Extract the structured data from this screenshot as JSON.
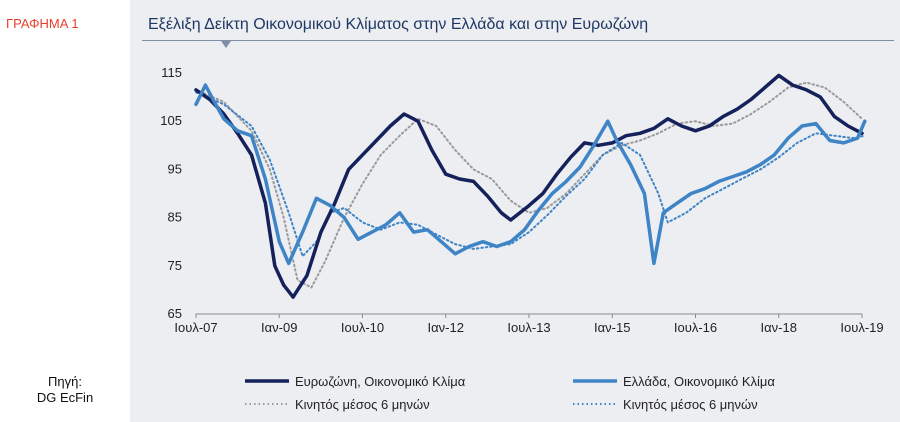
{
  "figure_label": "ΓΡΑΦΗΜΑ 1",
  "source_label": "Πηγή:",
  "source_value": "DG EcFin",
  "chart_data": {
    "type": "line",
    "title": "Εξέλιξη Δείκτη Οικονομικού Κλίματος στην Ελλάδα και στην Ευρωζώνη",
    "xlabel": "",
    "ylabel": "",
    "ylim": [
      65,
      115
    ],
    "yticks": [
      65,
      75,
      85,
      95,
      105,
      115
    ],
    "x_tick_labels": [
      "Ιουλ-07",
      "Ιαν-09",
      "Ιουλ-10",
      "Ιαν-12",
      "Ιουλ-13",
      "Ιαν-15",
      "Ιουλ-16",
      "Ιαν-18",
      "Ιουλ-19"
    ],
    "x_start": "Ιουλ-07",
    "x_end": "Ιουλ-19",
    "grid": false,
    "legend_position": "bottom",
    "series": [
      {
        "name": "Ευρωζώνη, Οικονομικό Κλίμα",
        "color": "#14215a",
        "style": "solid",
        "points": [
          [
            2007.5,
            111.5
          ],
          [
            2007.75,
            109.5
          ],
          [
            2008.0,
            106.5
          ],
          [
            2008.25,
            102.5
          ],
          [
            2008.5,
            98
          ],
          [
            2008.75,
            88
          ],
          [
            2008.92,
            75
          ],
          [
            2009.08,
            71
          ],
          [
            2009.25,
            68.5
          ],
          [
            2009.5,
            73
          ],
          [
            2009.75,
            82
          ],
          [
            2010.0,
            88
          ],
          [
            2010.25,
            95
          ],
          [
            2010.5,
            98
          ],
          [
            2010.75,
            101
          ],
          [
            2011.0,
            104
          ],
          [
            2011.25,
            106.5
          ],
          [
            2011.5,
            105
          ],
          [
            2011.75,
            99
          ],
          [
            2012.0,
            94
          ],
          [
            2012.25,
            93
          ],
          [
            2012.5,
            92.5
          ],
          [
            2012.75,
            89.5
          ],
          [
            2013.0,
            86
          ],
          [
            2013.17,
            84.5
          ],
          [
            2013.5,
            87.5
          ],
          [
            2013.75,
            90
          ],
          [
            2014.0,
            94
          ],
          [
            2014.25,
            97.5
          ],
          [
            2014.5,
            100.5
          ],
          [
            2014.75,
            100
          ],
          [
            2015.0,
            100.5
          ],
          [
            2015.25,
            102
          ],
          [
            2015.5,
            102.5
          ],
          [
            2015.75,
            103.5
          ],
          [
            2016.0,
            105.5
          ],
          [
            2016.25,
            104
          ],
          [
            2016.5,
            103
          ],
          [
            2016.75,
            104
          ],
          [
            2017.0,
            106
          ],
          [
            2017.25,
            107.5
          ],
          [
            2017.5,
            109.5
          ],
          [
            2017.75,
            112
          ],
          [
            2018.0,
            114.5
          ],
          [
            2018.25,
            112.5
          ],
          [
            2018.5,
            111.5
          ],
          [
            2018.75,
            110
          ],
          [
            2019.0,
            106
          ],
          [
            2019.25,
            104
          ],
          [
            2019.5,
            102.5
          ]
        ]
      },
      {
        "name": "Ελλάδα, Οικονομικό Κλίμα",
        "color": "#3e84c6",
        "style": "solid",
        "points": [
          [
            2007.5,
            108.5
          ],
          [
            2007.67,
            112.5
          ],
          [
            2007.83,
            109
          ],
          [
            2008.0,
            105.5
          ],
          [
            2008.25,
            103
          ],
          [
            2008.5,
            102
          ],
          [
            2008.75,
            93
          ],
          [
            2009.0,
            80
          ],
          [
            2009.17,
            75.5
          ],
          [
            2009.42,
            82
          ],
          [
            2009.67,
            89
          ],
          [
            2009.92,
            87.5
          ],
          [
            2010.17,
            85
          ],
          [
            2010.42,
            80.5
          ],
          [
            2010.67,
            82
          ],
          [
            2010.92,
            83.5
          ],
          [
            2011.17,
            86
          ],
          [
            2011.42,
            82
          ],
          [
            2011.67,
            82.5
          ],
          [
            2011.92,
            80
          ],
          [
            2012.17,
            77.5
          ],
          [
            2012.42,
            79
          ],
          [
            2012.67,
            80
          ],
          [
            2012.92,
            79
          ],
          [
            2013.17,
            80
          ],
          [
            2013.42,
            82.5
          ],
          [
            2013.67,
            86.5
          ],
          [
            2013.92,
            90
          ],
          [
            2014.17,
            92.5
          ],
          [
            2014.42,
            95.5
          ],
          [
            2014.67,
            100
          ],
          [
            2014.92,
            105
          ],
          [
            2015.08,
            101
          ],
          [
            2015.33,
            96
          ],
          [
            2015.58,
            90
          ],
          [
            2015.75,
            75.5
          ],
          [
            2015.92,
            86
          ],
          [
            2016.17,
            88
          ],
          [
            2016.42,
            90
          ],
          [
            2016.67,
            91
          ],
          [
            2016.92,
            92.5
          ],
          [
            2017.17,
            93.5
          ],
          [
            2017.42,
            94.5
          ],
          [
            2017.67,
            96
          ],
          [
            2017.92,
            98
          ],
          [
            2018.17,
            101.5
          ],
          [
            2018.42,
            104
          ],
          [
            2018.67,
            104.5
          ],
          [
            2018.92,
            101
          ],
          [
            2019.17,
            100.5
          ],
          [
            2019.42,
            101.5
          ],
          [
            2019.55,
            105
          ]
        ]
      },
      {
        "name": "Κινητός μέσος 6 μηνών",
        "color": "#9a9a9a",
        "style": "dotted",
        "points": [
          [
            2007.5,
            111.5
          ],
          [
            2008.0,
            109
          ],
          [
            2008.5,
            103
          ],
          [
            2008.83,
            95
          ],
          [
            2009.08,
            85
          ],
          [
            2009.33,
            72
          ],
          [
            2009.58,
            70.5
          ],
          [
            2009.83,
            76
          ],
          [
            2010.17,
            85
          ],
          [
            2010.5,
            92
          ],
          [
            2010.83,
            98
          ],
          [
            2011.17,
            102
          ],
          [
            2011.5,
            105.5
          ],
          [
            2011.83,
            104
          ],
          [
            2012.17,
            99
          ],
          [
            2012.5,
            95
          ],
          [
            2012.83,
            93
          ],
          [
            2013.17,
            88.5
          ],
          [
            2013.5,
            86
          ],
          [
            2013.83,
            87
          ],
          [
            2014.17,
            90
          ],
          [
            2014.5,
            94
          ],
          [
            2014.83,
            98
          ],
          [
            2015.17,
            100
          ],
          [
            2015.5,
            101
          ],
          [
            2015.83,
            102.5
          ],
          [
            2016.17,
            104.5
          ],
          [
            2016.5,
            105
          ],
          [
            2016.83,
            104
          ],
          [
            2017.17,
            104.5
          ],
          [
            2017.5,
            106.5
          ],
          [
            2017.83,
            109
          ],
          [
            2018.17,
            112
          ],
          [
            2018.5,
            113
          ],
          [
            2018.83,
            112
          ],
          [
            2019.17,
            109
          ],
          [
            2019.5,
            105.5
          ]
        ]
      },
      {
        "name": "Κινητός μέσος 6 μηνών",
        "color": "#3e84c6",
        "style": "dotted",
        "points": [
          [
            2007.5,
            111
          ],
          [
            2008.0,
            108.5
          ],
          [
            2008.5,
            104
          ],
          [
            2008.83,
            97
          ],
          [
            2009.17,
            86
          ],
          [
            2009.42,
            77
          ],
          [
            2009.67,
            80
          ],
          [
            2009.92,
            86
          ],
          [
            2010.17,
            87
          ],
          [
            2010.5,
            84
          ],
          [
            2010.83,
            82.5
          ],
          [
            2011.17,
            84
          ],
          [
            2011.5,
            83.5
          ],
          [
            2011.83,
            81.5
          ],
          [
            2012.17,
            79.5
          ],
          [
            2012.5,
            78.5
          ],
          [
            2012.83,
            79
          ],
          [
            2013.17,
            79.5
          ],
          [
            2013.5,
            82
          ],
          [
            2013.83,
            85.5
          ],
          [
            2014.17,
            89.5
          ],
          [
            2014.5,
            93
          ],
          [
            2014.83,
            98
          ],
          [
            2015.17,
            100.5
          ],
          [
            2015.5,
            98
          ],
          [
            2015.83,
            90
          ],
          [
            2016.0,
            84
          ],
          [
            2016.33,
            86
          ],
          [
            2016.67,
            89
          ],
          [
            2017.0,
            91
          ],
          [
            2017.33,
            93
          ],
          [
            2017.67,
            95
          ],
          [
            2018.0,
            97.5
          ],
          [
            2018.33,
            100.5
          ],
          [
            2018.67,
            102.5
          ],
          [
            2019.0,
            102
          ],
          [
            2019.33,
            101.5
          ],
          [
            2019.55,
            102
          ]
        ]
      }
    ]
  }
}
